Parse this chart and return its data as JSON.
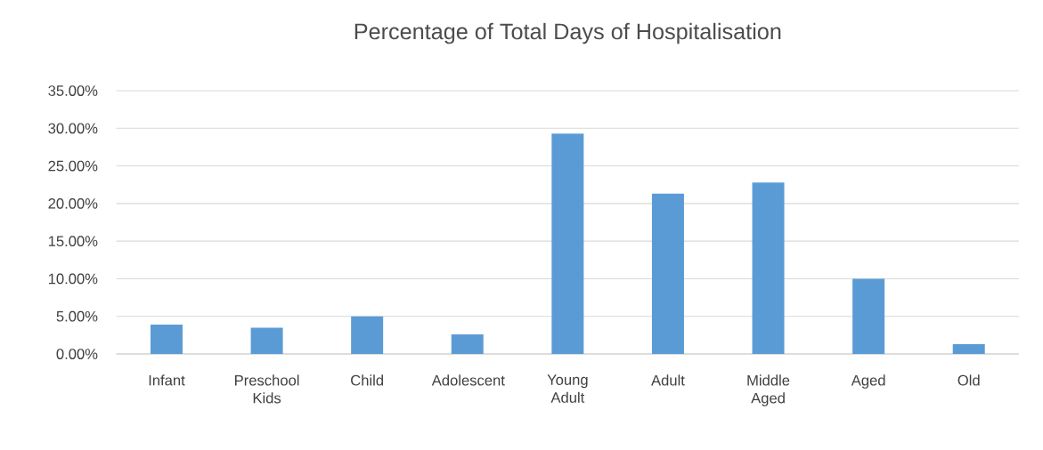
{
  "chart_data": {
    "type": "bar",
    "title": "Percentage of Total Days of Hospitalisation",
    "categories": [
      "Infant",
      "Preschool Kids",
      "Child",
      "Adolescent",
      "Young Adult",
      "Adult",
      "Middle Aged",
      "Aged",
      "Old"
    ],
    "values": [
      3.9,
      3.5,
      5.0,
      2.6,
      29.3,
      21.3,
      22.8,
      10.0,
      1.3
    ],
    "color": "#5b9bd5",
    "ylim": [
      0,
      35
    ],
    "yticks": [
      {
        "value": 0,
        "label": "0.00%"
      },
      {
        "value": 5,
        "label": "5.00%"
      },
      {
        "value": 10,
        "label": "10.00%"
      },
      {
        "value": 15,
        "label": "15.00%"
      },
      {
        "value": 20,
        "label": "20.00%"
      },
      {
        "value": 25,
        "label": "25.00%"
      },
      {
        "value": 30,
        "label": "30.00%"
      },
      {
        "value": 35,
        "label": "35.00%"
      }
    ],
    "grid": "y"
  }
}
